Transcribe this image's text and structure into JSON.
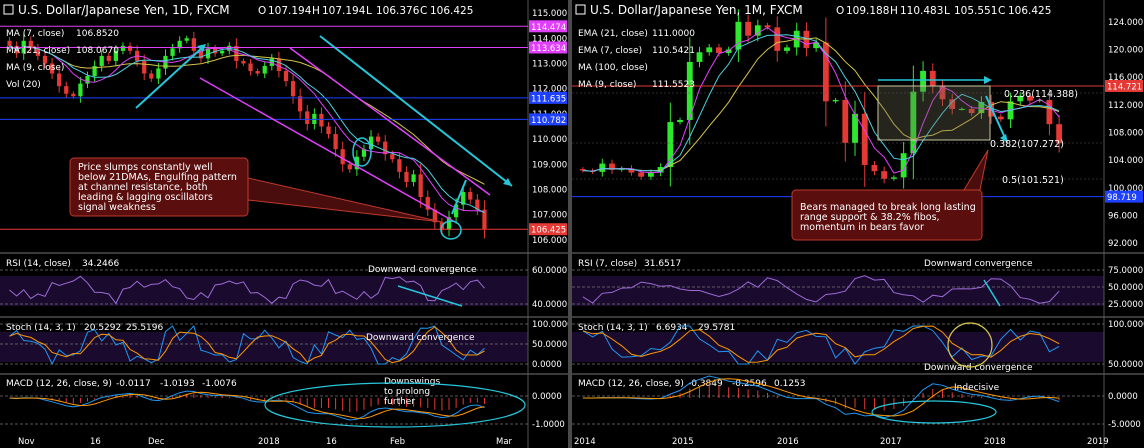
{
  "charts": [
    {
      "title": "U.S. Dollar/Japanese Yen, 1D, FXCM",
      "ohlc": {
        "o_label": "O",
        "o": "107.194",
        "h_label": "H",
        "h": "107.194",
        "l_label": "L",
        "l": "106.376",
        "c_label": "C",
        "c": "106.425"
      },
      "legend": [
        {
          "text": "MA (7, close)",
          "value": "106.8520",
          "color": "#e040fb"
        },
        {
          "text": "MA (21, close)",
          "value": "108.0670",
          "color": "#ffd54f"
        },
        {
          "text": "MA (9, close)",
          "value": "",
          "color": "#ffffff"
        },
        {
          "text": "Vol (20)",
          "value": "",
          "color": "#ffffff"
        }
      ],
      "price_ticks": [
        "115.000",
        "114.000",
        "113.000",
        "112.000",
        "111.000",
        "110.000",
        "109.000",
        "108.000",
        "107.000",
        "106.000"
      ],
      "price_labels": [
        {
          "value": "114.474",
          "color": "#e040fb"
        },
        {
          "value": "113.634",
          "color": "#e040fb"
        },
        {
          "value": "111.635",
          "color": "#1e40ff"
        },
        {
          "value": "110.782",
          "color": "#1e40ff"
        },
        {
          "value": "106.425",
          "color": "#e53935"
        }
      ],
      "annotation": "Price slumps constantly well below 21DMAs, Engulfing pattern at channel resistance, both leading & lagging oscillators signal weakness",
      "rsi": {
        "label": "RSI (14, close)",
        "value": "34.2466",
        "ticks": [
          "60.0000",
          "40.0000"
        ],
        "note": "Downward convergence"
      },
      "stoch": {
        "label": "Stoch (14, 3, 1)",
        "k": "20.5292",
        "d": "25.5196",
        "ticks": [
          "100.0000",
          "50.0000",
          "0.0000"
        ],
        "note": "Downward convergence"
      },
      "macd": {
        "label": "MACD (12, 26, close, 9)",
        "v1": "-0.0117",
        "v2": "-1.0193",
        "v3": "-1.0076",
        "ticks": [
          "0.0000",
          "-1.0000"
        ],
        "note": "Downswings to prolong further"
      },
      "x_ticks": [
        "Nov",
        "16",
        "Dec",
        "2018",
        "16",
        "Feb",
        "Mar"
      ]
    },
    {
      "title": "U.S. Dollar/Japanese Yen, 1M, FXCM",
      "ohlc": {
        "o_label": "O",
        "o": "109.188",
        "h_label": "H",
        "h": "110.483",
        "l_label": "L",
        "l": "105.551",
        "c_label": "C",
        "c": "106.425"
      },
      "legend": [
        {
          "text": "EMA (21, close)",
          "value": "111.0000",
          "color": "#ffd54f"
        },
        {
          "text": "EMA (7, close)",
          "value": "110.5421",
          "color": "#e040fb"
        },
        {
          "text": "MA (100, close)",
          "value": "",
          "color": "#ffffff"
        },
        {
          "text": "MA (9, close)",
          "value": "111.5523",
          "color": "#4dd0e1"
        }
      ],
      "price_ticks": [
        "124.000",
        "120.000",
        "116.000",
        "112.000",
        "108.000",
        "104.000",
        "100.000",
        "96.000",
        "92.000"
      ],
      "price_labels": [
        {
          "value": "114.721",
          "color": "#e53935"
        },
        {
          "value": "98.719",
          "color": "#1e40ff"
        }
      ],
      "fib": [
        {
          "text": "0.236(114.388)",
          "color": "#4dd0e1"
        },
        {
          "text": "0.382(107.272)",
          "color": "#ffa000"
        },
        {
          "text": "0.5(101.521)",
          "color": "#ffffff"
        }
      ],
      "annotation": "Bears managed to break long lasting range support & 38.2% fibos, momentum in bears favor",
      "rsi": {
        "label": "RSI (7, close)",
        "value": "31.6517",
        "ticks": [
          "75.0000",
          "50.0000",
          "25.0000"
        ],
        "note": "Downward convergence"
      },
      "stoch": {
        "label": "Stoch (14, 3, 1)",
        "k": "6.6934",
        "d": "29.5781",
        "ticks": [
          "100.0000",
          "50.0000"
        ],
        "note": "Downward convergence"
      },
      "macd": {
        "label": "MACD (12, 26, close, 9)",
        "v1": "-0.3849",
        "v2": "-0.2596",
        "v3": "0.1253",
        "ticks": [
          "0.0000",
          "-5.0000"
        ],
        "note": "Indecisive"
      },
      "x_ticks": [
        "2014",
        "2015",
        "2016",
        "2017",
        "2018",
        "2019"
      ]
    }
  ],
  "chart_data": [
    {
      "type": "candlestick",
      "title": "U.S. Dollar/Japanese Yen, 1D, FXCM",
      "timeframe": "1D",
      "ylim": [
        105.6,
        115.2
      ],
      "last_close": 106.425,
      "series": [
        {
          "name": "MA (7, close)",
          "last": 106.852
        },
        {
          "name": "MA (21, close)",
          "last": 108.067
        }
      ],
      "closes": [
        113.7,
        113.4,
        113.9,
        113.6,
        113.3,
        113.0,
        112.6,
        112.1,
        111.8,
        111.7,
        112.2,
        112.5,
        112.9,
        113.3,
        113.1,
        113.5,
        113.7,
        113.5,
        113.1,
        112.6,
        112.4,
        112.8,
        113.3,
        113.6,
        113.9,
        114.0,
        113.5,
        113.2,
        113.6,
        113.4,
        113.5,
        113.7,
        113.1,
        113.0,
        112.7,
        112.6,
        112.9,
        113.2,
        112.7,
        112.3,
        111.7,
        111.1,
        110.6,
        111.0,
        110.5,
        110.2,
        109.6,
        109.0,
        108.8,
        109.3,
        109.6,
        110.1,
        109.9,
        109.4,
        109.2,
        108.7,
        108.3,
        108.6,
        107.7,
        107.2,
        106.7,
        106.4,
        106.9,
        107.4,
        107.9,
        107.6,
        107.2,
        106.425
      ]
    },
    {
      "type": "candlestick",
      "title": "U.S. Dollar/Japanese Yen, 1M, FXCM",
      "timeframe": "1M",
      "ylim": [
        91.0,
        126.0
      ],
      "last_close": 106.425,
      "fib_levels": [
        {
          "ratio": 0.236,
          "value": 114.388
        },
        {
          "ratio": 0.382,
          "value": 107.272
        },
        {
          "ratio": 0.5,
          "value": 101.521
        }
      ],
      "closes": [
        102.5,
        102.3,
        103.5,
        102.6,
        102.8,
        102.2,
        101.6,
        102.2,
        103.0,
        109.5,
        109.8,
        118.2,
        119.6,
        120.3,
        119.5,
        120.0,
        124.0,
        122.0,
        123.5,
        123.2,
        119.8,
        120.3,
        122.7,
        120.2,
        121.0,
        112.5,
        112.7,
        106.5,
        110.7,
        103.3,
        102.4,
        101.3,
        101.5,
        105.0,
        113.9,
        116.9,
        114.7,
        112.8,
        111.4,
        111.4,
        110.8,
        112.4,
        110.3,
        109.9,
        112.5,
        113.3,
        112.6,
        112.7,
        109.2,
        106.425
      ]
    }
  ]
}
